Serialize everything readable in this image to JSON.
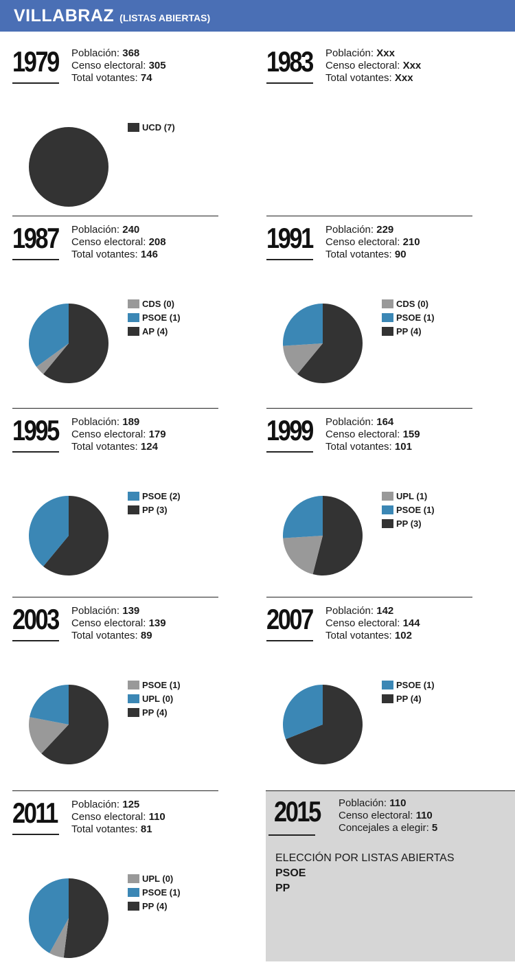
{
  "header": {
    "title": "VILLABRAZ",
    "subtitle": "(LISTAS ABIERTAS)",
    "bg": "#4a6fb5"
  },
  "colors": {
    "grey": "#999999",
    "blue": "#3b87b5",
    "dark": "#333333"
  },
  "labels": {
    "poblacion": "Población:",
    "censo": "Censo electoral:",
    "votantes": "Total votantes:",
    "concejales": "Concejales a elegir:"
  },
  "blocks": [
    {
      "year": "1979",
      "poblacion": "368",
      "censo": "305",
      "votantes": "74",
      "legend": [
        {
          "label": "UCD (7)",
          "color": "#333333"
        }
      ]
    },
    {
      "year": "1983",
      "poblacion": "Xxx",
      "censo": "Xxx",
      "votantes": "Xxx",
      "legend": []
    },
    {
      "year": "1987",
      "poblacion": "240",
      "censo": "208",
      "votantes": "146",
      "legend": [
        {
          "label": "CDS (0)",
          "color": "#999999"
        },
        {
          "label": "PSOE (1)",
          "color": "#3b87b5"
        },
        {
          "label": "AP (4)",
          "color": "#333333"
        }
      ]
    },
    {
      "year": "1991",
      "poblacion": "229",
      "censo": "210",
      "votantes": "90",
      "legend": [
        {
          "label": "CDS (0)",
          "color": "#999999"
        },
        {
          "label": "PSOE (1)",
          "color": "#3b87b5"
        },
        {
          "label": "PP (4)",
          "color": "#333333"
        }
      ]
    },
    {
      "year": "1995",
      "poblacion": "189",
      "censo": "179",
      "votantes": "124",
      "legend": [
        {
          "label": "PSOE (2)",
          "color": "#3b87b5"
        },
        {
          "label": "PP (3)",
          "color": "#333333"
        }
      ]
    },
    {
      "year": "1999",
      "poblacion": "164",
      "censo": "159",
      "votantes": "101",
      "legend": [
        {
          "label": "UPL (1)",
          "color": "#999999"
        },
        {
          "label": "PSOE (1)",
          "color": "#3b87b5"
        },
        {
          "label": "PP (3)",
          "color": "#333333"
        }
      ]
    },
    {
      "year": "2003",
      "poblacion": "139",
      "censo": "139",
      "votantes": "89",
      "legend": [
        {
          "label": "PSOE (1)",
          "color": "#999999"
        },
        {
          "label": "UPL (0)",
          "color": "#3b87b5"
        },
        {
          "label": "PP (4)",
          "color": "#333333"
        }
      ]
    },
    {
      "year": "2007",
      "poblacion": "142",
      "censo": "144",
      "votantes": "102",
      "legend": [
        {
          "label": "PSOE (1)",
          "color": "#3b87b5"
        },
        {
          "label": "PP (4)",
          "color": "#333333"
        }
      ]
    },
    {
      "year": "2011",
      "poblacion": "125",
      "censo": "110",
      "votantes": "81",
      "legend": [
        {
          "label": "UPL (0)",
          "color": "#999999"
        },
        {
          "label": "PSOE (1)",
          "color": "#3b87b5"
        },
        {
          "label": "PP (4)",
          "color": "#333333"
        }
      ]
    }
  ],
  "box2015": {
    "year": "2015",
    "poblacion": "110",
    "censo": "110",
    "concejales": "5",
    "title": "ELECCIÓN POR LISTAS ABIERTAS",
    "parties": [
      "PSOE",
      "PP"
    ]
  },
  "chart_data": [
    {
      "type": "pie",
      "year": "1979",
      "categories": [
        "UCD"
      ],
      "values": [
        100
      ],
      "colors": [
        "#333333"
      ]
    },
    {
      "type": "pie",
      "year": "1987",
      "categories": [
        "CDS",
        "PSOE",
        "AP"
      ],
      "values": [
        4,
        35,
        61
      ],
      "colors": [
        "#999999",
        "#3b87b5",
        "#333333"
      ]
    },
    {
      "type": "pie",
      "year": "1991",
      "categories": [
        "CDS",
        "PSOE",
        "PP"
      ],
      "values": [
        13,
        26,
        61
      ],
      "colors": [
        "#999999",
        "#3b87b5",
        "#333333"
      ]
    },
    {
      "type": "pie",
      "year": "1995",
      "categories": [
        "PSOE",
        "PP"
      ],
      "values": [
        39,
        61
      ],
      "colors": [
        "#3b87b5",
        "#333333"
      ]
    },
    {
      "type": "pie",
      "year": "1999",
      "categories": [
        "UPL",
        "PSOE",
        "PP"
      ],
      "values": [
        20,
        26,
        54
      ],
      "colors": [
        "#999999",
        "#3b87b5",
        "#333333"
      ]
    },
    {
      "type": "pie",
      "year": "2003",
      "categories": [
        "PSOE",
        "UPL",
        "PP"
      ],
      "values": [
        16,
        22,
        62
      ],
      "colors": [
        "#999999",
        "#3b87b5",
        "#333333"
      ]
    },
    {
      "type": "pie",
      "year": "2007",
      "categories": [
        "PSOE",
        "PP"
      ],
      "values": [
        31,
        69
      ],
      "colors": [
        "#3b87b5",
        "#333333"
      ]
    },
    {
      "type": "pie",
      "year": "2011",
      "categories": [
        "UPL",
        "PSOE",
        "PP"
      ],
      "values": [
        6,
        42,
        52
      ],
      "colors": [
        "#999999",
        "#3b87b5",
        "#333333"
      ]
    }
  ]
}
